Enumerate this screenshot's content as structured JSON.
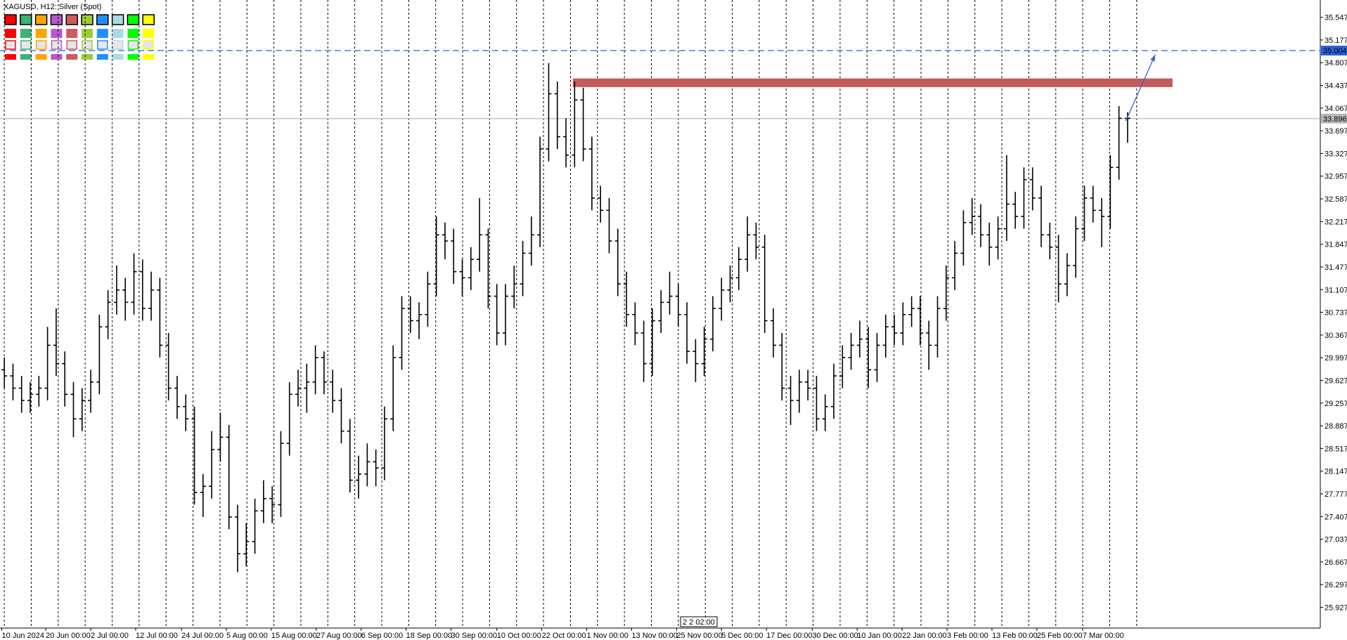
{
  "chart_data": {
    "type": "ohlc",
    "title": "XAGUSD, H12:  Silver (Spot)",
    "color": "#000000",
    "bars": [
      [
        29.8,
        30.0,
        29.5,
        29.7
      ],
      [
        29.7,
        29.9,
        29.3,
        29.5
      ],
      [
        29.5,
        29.7,
        29.1,
        29.3
      ],
      [
        29.3,
        29.6,
        29.1,
        29.4
      ],
      [
        29.4,
        29.7,
        29.2,
        29.5
      ],
      [
        29.5,
        30.5,
        29.3,
        30.2
      ],
      [
        30.2,
        30.8,
        29.7,
        29.9
      ],
      [
        29.9,
        30.1,
        29.2,
        29.4
      ],
      [
        29.4,
        29.6,
        28.7,
        29.0
      ],
      [
        29.0,
        29.5,
        28.8,
        29.3
      ],
      [
        29.3,
        29.8,
        29.1,
        29.6
      ],
      [
        29.6,
        30.7,
        29.4,
        30.5
      ],
      [
        30.5,
        31.1,
        30.3,
        30.9
      ],
      [
        30.9,
        31.5,
        30.7,
        31.1
      ],
      [
        31.1,
        31.3,
        30.6,
        30.9
      ],
      [
        30.9,
        31.7,
        30.7,
        31.4
      ],
      [
        31.4,
        31.6,
        30.6,
        30.8
      ],
      [
        30.8,
        31.4,
        30.6,
        31.1
      ],
      [
        31.1,
        31.3,
        30.0,
        30.2
      ],
      [
        30.2,
        30.4,
        29.3,
        29.5
      ],
      [
        29.5,
        29.7,
        29.0,
        29.2
      ],
      [
        29.2,
        29.4,
        28.8,
        29.0
      ],
      [
        29.0,
        29.2,
        27.6,
        27.8
      ],
      [
        27.8,
        28.1,
        27.4,
        27.9
      ],
      [
        27.9,
        28.8,
        27.7,
        28.5
      ],
      [
        28.5,
        29.1,
        28.3,
        28.7
      ],
      [
        28.7,
        28.9,
        27.2,
        27.4
      ],
      [
        27.4,
        27.6,
        26.5,
        26.8
      ],
      [
        26.8,
        27.3,
        26.6,
        27.0
      ],
      [
        27.0,
        27.7,
        26.8,
        27.5
      ],
      [
        27.5,
        28.0,
        27.3,
        27.7
      ],
      [
        27.7,
        27.9,
        27.3,
        27.6
      ],
      [
        27.6,
        28.8,
        27.4,
        28.6
      ],
      [
        28.6,
        29.6,
        28.4,
        29.4
      ],
      [
        29.4,
        29.8,
        29.2,
        29.5
      ],
      [
        29.5,
        29.9,
        29.1,
        29.6
      ],
      [
        29.6,
        30.2,
        29.4,
        30.0
      ],
      [
        30.0,
        30.1,
        29.4,
        29.6
      ],
      [
        29.6,
        29.8,
        29.1,
        29.3
      ],
      [
        29.3,
        29.5,
        28.6,
        28.8
      ],
      [
        28.8,
        29.0,
        27.8,
        28.0
      ],
      [
        28.0,
        28.4,
        27.7,
        28.1
      ],
      [
        28.1,
        28.6,
        27.9,
        28.3
      ],
      [
        28.3,
        28.5,
        27.9,
        28.2
      ],
      [
        28.2,
        29.2,
        28.0,
        29.0
      ],
      [
        29.0,
        30.2,
        28.8,
        30.0
      ],
      [
        30.0,
        31.0,
        29.8,
        30.8
      ],
      [
        30.8,
        31.0,
        30.4,
        30.6
      ],
      [
        30.6,
        30.9,
        30.3,
        30.7
      ],
      [
        30.7,
        31.4,
        30.5,
        31.2
      ],
      [
        31.2,
        32.3,
        31.0,
        32.0
      ],
      [
        32.0,
        32.2,
        31.6,
        31.9
      ],
      [
        31.9,
        32.1,
        31.2,
        31.4
      ],
      [
        31.4,
        31.6,
        31.0,
        31.3
      ],
      [
        31.3,
        31.8,
        31.1,
        31.6
      ],
      [
        31.6,
        32.6,
        31.4,
        32.0
      ],
      [
        32.0,
        32.1,
        30.8,
        31.0
      ],
      [
        31.0,
        31.2,
        30.2,
        30.4
      ],
      [
        30.4,
        31.2,
        30.2,
        31.0
      ],
      [
        31.0,
        31.5,
        30.8,
        31.2
      ],
      [
        31.2,
        31.9,
        31.0,
        31.7
      ],
      [
        31.7,
        32.3,
        31.5,
        32.0
      ],
      [
        32.0,
        33.6,
        31.8,
        33.4
      ],
      [
        33.4,
        34.8,
        33.2,
        34.3
      ],
      [
        34.3,
        34.5,
        33.4,
        33.6
      ],
      [
        33.6,
        33.9,
        33.1,
        33.3
      ],
      [
        33.3,
        34.5,
        33.1,
        34.2
      ],
      [
        34.2,
        34.4,
        33.2,
        33.4
      ],
      [
        33.4,
        33.6,
        32.4,
        32.6
      ],
      [
        32.6,
        32.8,
        32.2,
        32.4
      ],
      [
        32.4,
        32.6,
        31.7,
        31.9
      ],
      [
        31.9,
        32.1,
        31.0,
        31.2
      ],
      [
        31.2,
        31.4,
        30.5,
        30.7
      ],
      [
        30.7,
        30.9,
        30.2,
        30.4
      ],
      [
        30.4,
        30.6,
        29.6,
        29.9
      ],
      [
        29.9,
        30.8,
        29.7,
        30.6
      ],
      [
        30.6,
        31.1,
        30.4,
        30.9
      ],
      [
        30.9,
        31.4,
        30.7,
        31.0
      ],
      [
        31.0,
        31.2,
        30.5,
        30.7
      ],
      [
        30.7,
        30.9,
        29.9,
        30.1
      ],
      [
        30.1,
        30.3,
        29.6,
        29.9
      ],
      [
        29.9,
        30.5,
        29.7,
        30.3
      ],
      [
        30.3,
        31.0,
        30.1,
        30.8
      ],
      [
        30.8,
        31.3,
        30.6,
        31.1
      ],
      [
        31.1,
        31.5,
        30.9,
        31.3
      ],
      [
        31.3,
        31.8,
        31.1,
        31.6
      ],
      [
        31.6,
        32.3,
        31.4,
        32.0
      ],
      [
        32.0,
        32.2,
        31.6,
        31.8
      ],
      [
        31.8,
        32.0,
        30.4,
        30.6
      ],
      [
        30.6,
        30.8,
        30.0,
        30.2
      ],
      [
        30.2,
        30.4,
        29.3,
        29.5
      ],
      [
        29.5,
        29.7,
        28.9,
        29.3
      ],
      [
        29.3,
        29.8,
        29.1,
        29.6
      ],
      [
        29.6,
        29.8,
        29.3,
        29.5
      ],
      [
        29.5,
        29.7,
        28.8,
        29.0
      ],
      [
        29.0,
        29.4,
        28.8,
        29.2
      ],
      [
        29.2,
        29.9,
        29.0,
        29.7
      ],
      [
        29.7,
        30.2,
        29.5,
        30.0
      ],
      [
        30.0,
        30.4,
        29.8,
        30.2
      ],
      [
        30.2,
        30.6,
        30.0,
        30.3
      ],
      [
        30.3,
        30.5,
        29.5,
        29.8
      ],
      [
        29.8,
        30.4,
        29.6,
        30.2
      ],
      [
        30.2,
        30.7,
        30.0,
        30.5
      ],
      [
        30.5,
        30.7,
        30.2,
        30.4
      ],
      [
        30.4,
        30.9,
        30.2,
        30.7
      ],
      [
        30.7,
        31.0,
        30.5,
        30.8
      ],
      [
        30.8,
        31.0,
        30.2,
        30.4
      ],
      [
        30.4,
        30.6,
        29.8,
        30.2
      ],
      [
        30.2,
        31.0,
        30.0,
        30.8
      ],
      [
        30.8,
        31.5,
        30.6,
        31.3
      ],
      [
        31.3,
        31.9,
        31.1,
        31.7
      ],
      [
        31.7,
        32.4,
        31.5,
        32.2
      ],
      [
        32.2,
        32.6,
        32.0,
        32.3
      ],
      [
        32.3,
        32.5,
        31.8,
        32.0
      ],
      [
        32.0,
        32.2,
        31.5,
        31.8
      ],
      [
        31.8,
        32.3,
        31.6,
        32.1
      ],
      [
        32.1,
        33.3,
        31.9,
        32.5
      ],
      [
        32.5,
        32.7,
        32.1,
        32.3
      ],
      [
        32.3,
        33.1,
        32.1,
        32.9
      ],
      [
        32.9,
        33.1,
        32.4,
        32.6
      ],
      [
        32.6,
        32.8,
        31.8,
        32.0
      ],
      [
        32.0,
        32.2,
        31.6,
        31.8
      ],
      [
        31.8,
        32.0,
        30.9,
        31.2
      ],
      [
        31.2,
        31.7,
        31.0,
        31.5
      ],
      [
        31.5,
        32.3,
        31.3,
        32.1
      ],
      [
        32.1,
        32.8,
        31.9,
        32.6
      ],
      [
        32.6,
        32.8,
        32.2,
        32.4
      ],
      [
        32.4,
        32.6,
        31.8,
        32.3
      ],
      [
        32.3,
        33.3,
        32.1,
        33.1
      ],
      [
        33.1,
        34.1,
        32.9,
        33.9
      ],
      [
        33.9,
        34.0,
        33.5,
        33.9
      ]
    ],
    "xlim": [
      -0.5,
      152.3
    ],
    "xticks": [
      {
        "value": -0.3,
        "label": "10 Jun 2024"
      },
      {
        "value": 4.8,
        "label": "20 Jun 00:00"
      },
      {
        "value": 10.0,
        "label": "2 Jul 00:00"
      },
      {
        "value": 15.2,
        "label": "12 Jul 00:00"
      },
      {
        "value": 20.5,
        "label": "24 Jul 00:00"
      },
      {
        "value": 25.7,
        "label": "5 Aug 00:00"
      },
      {
        "value": 30.9,
        "label": "15 Aug 00:00"
      },
      {
        "value": 36.1,
        "label": "27 Aug 00:00"
      },
      {
        "value": 41.3,
        "label": "6 Sep 00:00"
      },
      {
        "value": 46.5,
        "label": "18 Sep 00:00"
      },
      {
        "value": 51.7,
        "label": "30 Sep 00:00"
      },
      {
        "value": 57.0,
        "label": "10 Oct 00:00"
      },
      {
        "value": 62.2,
        "label": "22 Oct 00:00"
      },
      {
        "value": 67.4,
        "label": "1 Nov 00:00"
      },
      {
        "value": 72.6,
        "label": "13 Nov 00:00"
      },
      {
        "value": 77.8,
        "label": "25 Nov 00:00"
      },
      {
        "value": 83.0,
        "label": "5 Dec 00:00"
      },
      {
        "value": 88.2,
        "label": "17 Dec 00:00"
      },
      {
        "value": 93.5,
        "label": "30 Dec 00:00"
      },
      {
        "value": 98.7,
        "label": "10 Jan 00:00"
      },
      {
        "value": 103.9,
        "label": "22 Jan 00:00"
      },
      {
        "value": 109.1,
        "label": "3 Feb 00:00"
      },
      {
        "value": 114.3,
        "label": "13 Feb 00:00"
      },
      {
        "value": 119.5,
        "label": "25 Feb 00:00"
      },
      {
        "value": 124.8,
        "label": "7 Mar 00:00"
      }
    ],
    "ylim": [
      25.589,
      35.829
    ],
    "yticks": [
      35.547,
      35.177,
      34.807,
      34.437,
      34.067,
      33.697,
      33.327,
      32.957,
      32.587,
      32.217,
      31.847,
      31.477,
      31.107,
      30.737,
      30.367,
      29.997,
      29.627,
      29.257,
      28.887,
      28.517,
      28.147,
      27.777,
      27.407,
      27.037,
      26.667,
      26.297,
      25.927
    ],
    "price_lines": [
      {
        "value": 35.004,
        "color": "#2c62d6",
        "dashed": true
      },
      {
        "value": 33.896,
        "color": "#b8b8b8",
        "dashed": false
      }
    ],
    "zone": {
      "from": 65.8,
      "to": 135.2,
      "top": 34.55,
      "bottom": 34.41,
      "color": "#c55a5a"
    },
    "arrow": {
      "x": [
        129.8,
        133.2
      ],
      "y": [
        33.857,
        34.94
      ],
      "color": "#3366cc"
    },
    "cursor_label": "2 2 02:00"
  }
}
